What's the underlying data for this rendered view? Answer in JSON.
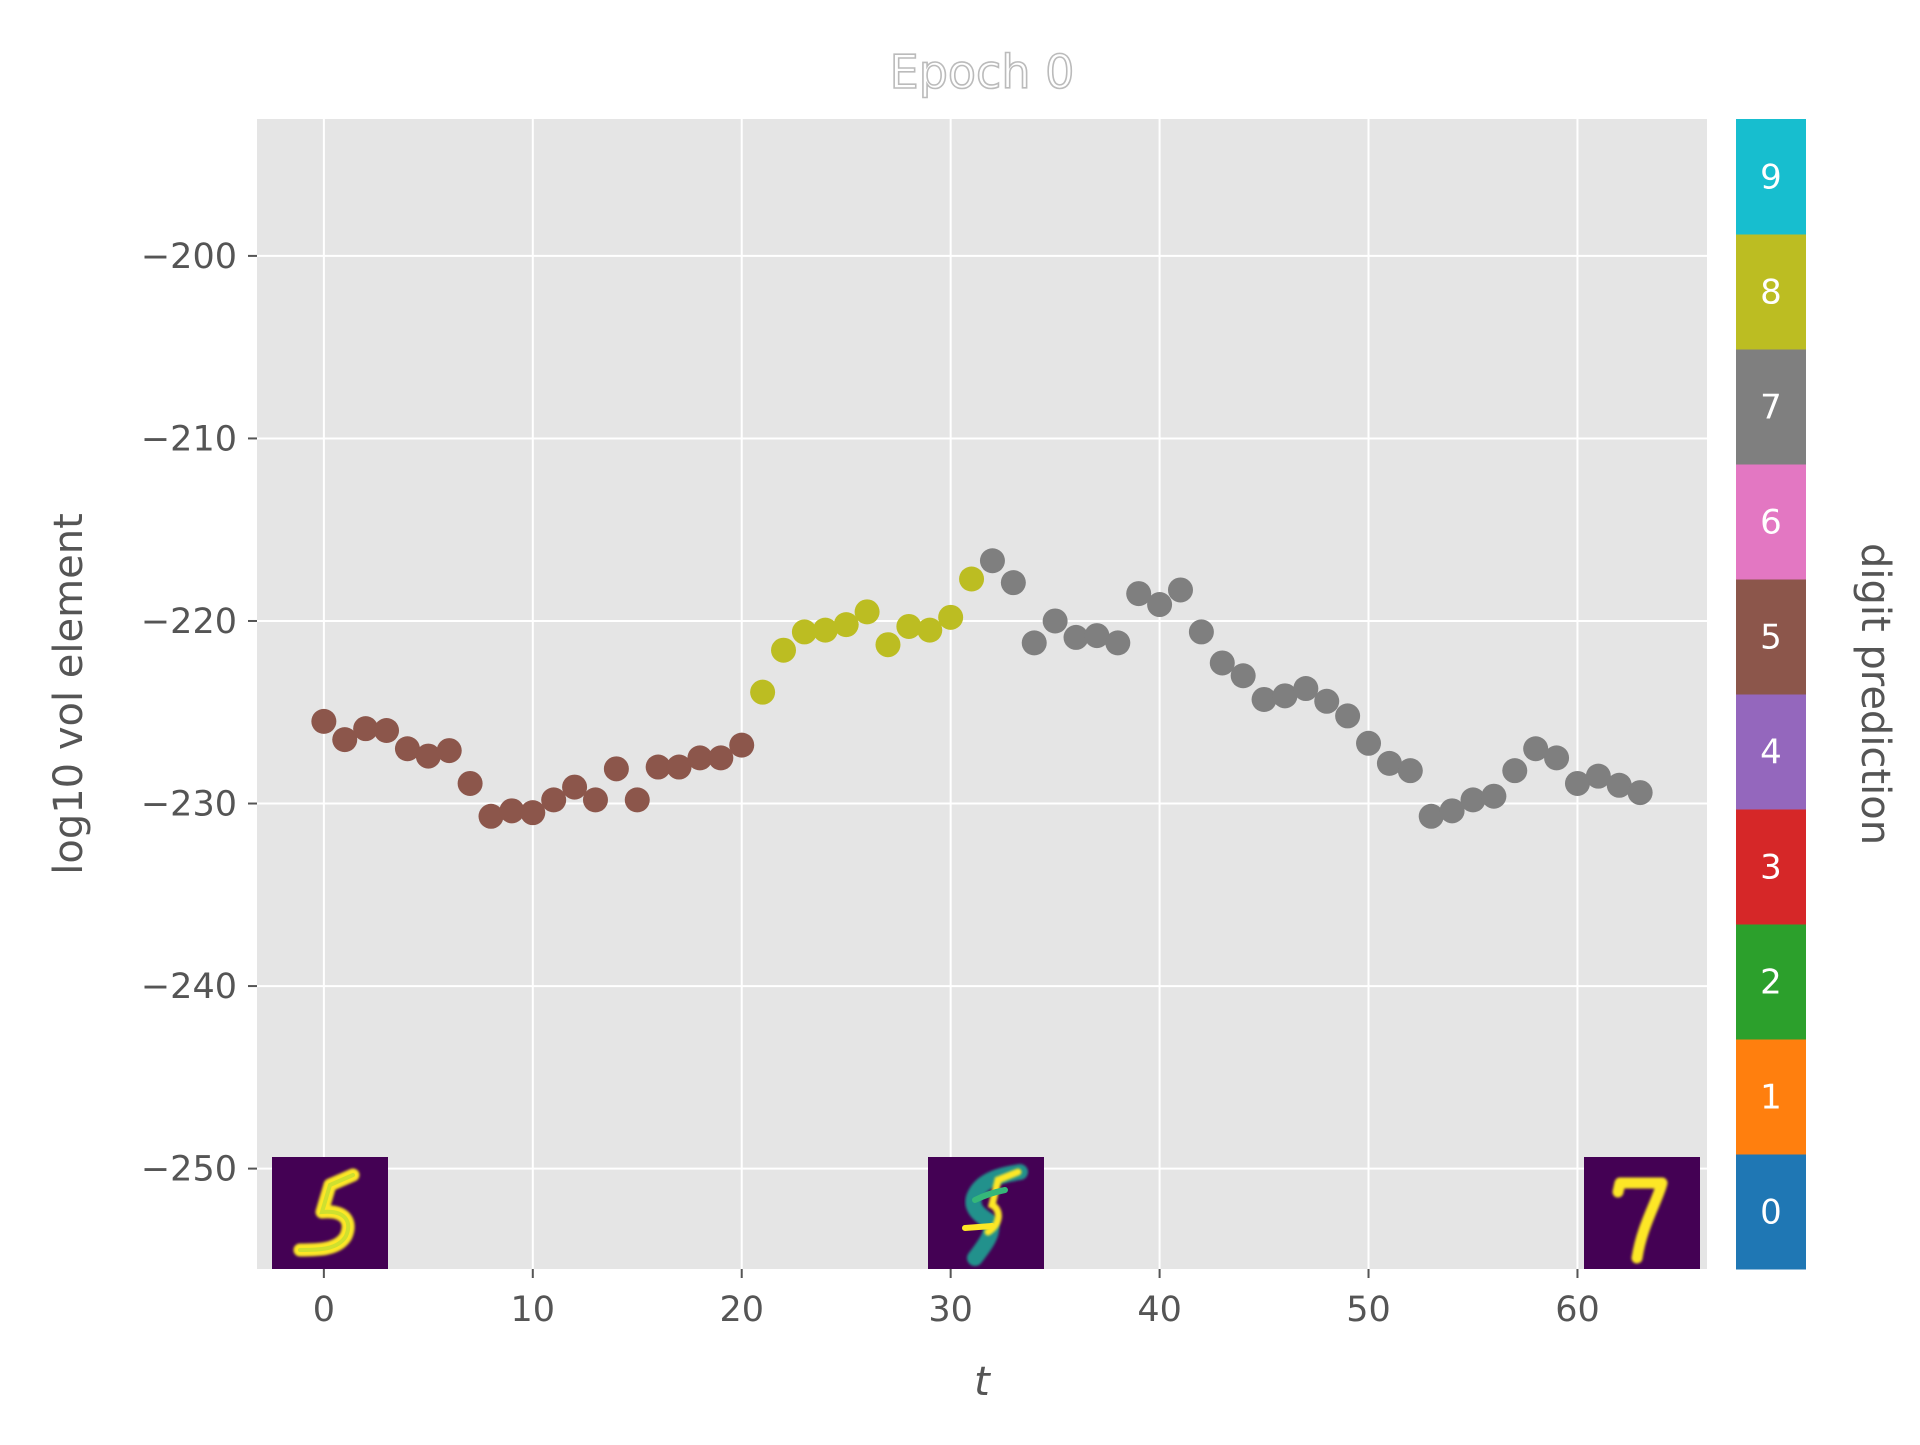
{
  "chart_data": {
    "type": "scatter",
    "title": "Epoch 0",
    "xlabel": "t",
    "ylabel": "log10 vol element",
    "xlim": [
      -3.2,
      66.2
    ],
    "ylim": [
      -255.5,
      -192.5
    ],
    "xticks": [
      0,
      10,
      20,
      30,
      40,
      50,
      60
    ],
    "yticks": [
      -200,
      -210,
      -220,
      -230,
      -240,
      -250
    ],
    "grid": true,
    "colorbar": {
      "label": "digit prediction",
      "classes": [
        {
          "value": "0",
          "color": "#1f77b4"
        },
        {
          "value": "1",
          "color": "#ff7f0e"
        },
        {
          "value": "2",
          "color": "#2ca02c"
        },
        {
          "value": "3",
          "color": "#d62728"
        },
        {
          "value": "4",
          "color": "#9467bd"
        },
        {
          "value": "5",
          "color": "#8c564b"
        },
        {
          "value": "6",
          "color": "#e377c2"
        },
        {
          "value": "7",
          "color": "#7f7f7f"
        },
        {
          "value": "8",
          "color": "#bcbd22"
        },
        {
          "value": "9",
          "color": "#17becf"
        }
      ]
    },
    "points": [
      {
        "t": 0,
        "y": -225.5,
        "digit": 5
      },
      {
        "t": 1,
        "y": -226.5,
        "digit": 5
      },
      {
        "t": 2,
        "y": -225.9,
        "digit": 5
      },
      {
        "t": 3,
        "y": -226.0,
        "digit": 5
      },
      {
        "t": 4,
        "y": -227.0,
        "digit": 5
      },
      {
        "t": 5,
        "y": -227.4,
        "digit": 5
      },
      {
        "t": 6,
        "y": -227.1,
        "digit": 5
      },
      {
        "t": 7,
        "y": -228.9,
        "digit": 5
      },
      {
        "t": 8,
        "y": -230.7,
        "digit": 5
      },
      {
        "t": 9,
        "y": -230.4,
        "digit": 5
      },
      {
        "t": 10,
        "y": -230.5,
        "digit": 5
      },
      {
        "t": 11,
        "y": -229.8,
        "digit": 5
      },
      {
        "t": 12,
        "y": -229.1,
        "digit": 5
      },
      {
        "t": 13,
        "y": -229.8,
        "digit": 5
      },
      {
        "t": 14,
        "y": -228.1,
        "digit": 5
      },
      {
        "t": 15,
        "y": -229.8,
        "digit": 5
      },
      {
        "t": 16,
        "y": -228.0,
        "digit": 5
      },
      {
        "t": 17,
        "y": -228.0,
        "digit": 5
      },
      {
        "t": 18,
        "y": -227.5,
        "digit": 5
      },
      {
        "t": 19,
        "y": -227.5,
        "digit": 5
      },
      {
        "t": 20,
        "y": -226.8,
        "digit": 5
      },
      {
        "t": 21,
        "y": -223.9,
        "digit": 8
      },
      {
        "t": 22,
        "y": -221.6,
        "digit": 8
      },
      {
        "t": 23,
        "y": -220.6,
        "digit": 8
      },
      {
        "t": 24,
        "y": -220.5,
        "digit": 8
      },
      {
        "t": 25,
        "y": -220.2,
        "digit": 8
      },
      {
        "t": 26,
        "y": -219.5,
        "digit": 8
      },
      {
        "t": 27,
        "y": -221.3,
        "digit": 8
      },
      {
        "t": 28,
        "y": -220.3,
        "digit": 8
      },
      {
        "t": 29,
        "y": -220.5,
        "digit": 8
      },
      {
        "t": 30,
        "y": -219.8,
        "digit": 8
      },
      {
        "t": 31,
        "y": -217.7,
        "digit": 8
      },
      {
        "t": 32,
        "y": -216.7,
        "digit": 7
      },
      {
        "t": 33,
        "y": -217.9,
        "digit": 7
      },
      {
        "t": 34,
        "y": -221.2,
        "digit": 7
      },
      {
        "t": 35,
        "y": -220.0,
        "digit": 7
      },
      {
        "t": 36,
        "y": -220.9,
        "digit": 7
      },
      {
        "t": 37,
        "y": -220.8,
        "digit": 7
      },
      {
        "t": 38,
        "y": -221.2,
        "digit": 7
      },
      {
        "t": 39,
        "y": -218.5,
        "digit": 7
      },
      {
        "t": 40,
        "y": -219.1,
        "digit": 7
      },
      {
        "t": 41,
        "y": -218.3,
        "digit": 7
      },
      {
        "t": 42,
        "y": -220.6,
        "digit": 7
      },
      {
        "t": 43,
        "y": -222.3,
        "digit": 7
      },
      {
        "t": 44,
        "y": -223.0,
        "digit": 7
      },
      {
        "t": 45,
        "y": -224.3,
        "digit": 7
      },
      {
        "t": 46,
        "y": -224.1,
        "digit": 7
      },
      {
        "t": 47,
        "y": -223.7,
        "digit": 7
      },
      {
        "t": 48,
        "y": -224.4,
        "digit": 7
      },
      {
        "t": 49,
        "y": -225.2,
        "digit": 7
      },
      {
        "t": 50,
        "y": -226.7,
        "digit": 7
      },
      {
        "t": 51,
        "y": -227.8,
        "digit": 7
      },
      {
        "t": 52,
        "y": -228.2,
        "digit": 7
      },
      {
        "t": 53,
        "y": -230.7,
        "digit": 7
      },
      {
        "t": 54,
        "y": -230.4,
        "digit": 7
      },
      {
        "t": 55,
        "y": -229.8,
        "digit": 7
      },
      {
        "t": 56,
        "y": -229.6,
        "digit": 7
      },
      {
        "t": 57,
        "y": -228.2,
        "digit": 7
      },
      {
        "t": 58,
        "y": -227.0,
        "digit": 7
      },
      {
        "t": 59,
        "y": -227.5,
        "digit": 7
      },
      {
        "t": 60,
        "y": -228.9,
        "digit": 7
      },
      {
        "t": 61,
        "y": -228.5,
        "digit": 7
      },
      {
        "t": 62,
        "y": -229.0,
        "digit": 7
      },
      {
        "t": 63,
        "y": -229.4,
        "digit": 7
      }
    ],
    "digit_thumbnails": [
      {
        "t": 0,
        "digit": "5"
      },
      {
        "t": 31,
        "digit": "5/8 blend"
      },
      {
        "t": 63,
        "digit": "7"
      }
    ]
  }
}
